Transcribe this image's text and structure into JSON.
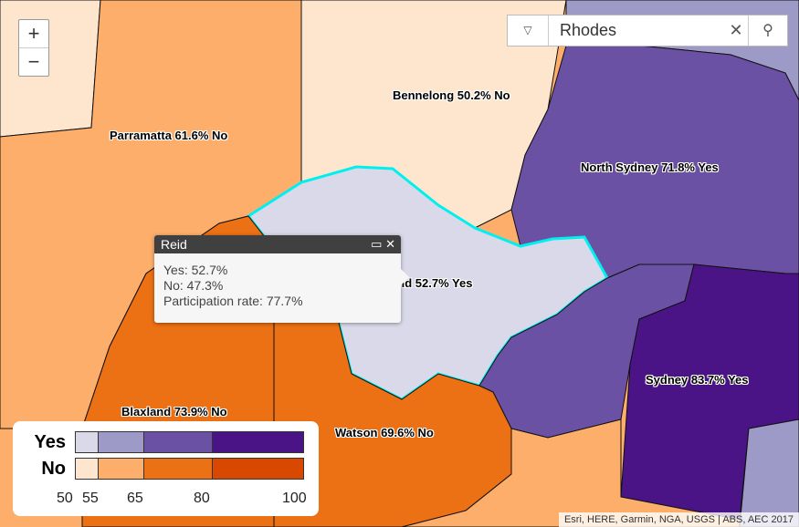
{
  "search": {
    "value": "Rhodes"
  },
  "zoom": {
    "in": "+",
    "out": "−"
  },
  "regions": [
    {
      "name": "Bennelong",
      "label": "Bennelong 50.2% No"
    },
    {
      "name": "Parramatta",
      "label": "Parramatta 61.6% No"
    },
    {
      "name": "North Sydney",
      "label": "North Sydney 71.8% Yes"
    },
    {
      "name": "Reid",
      "label": "Reid 52.7% Yes"
    },
    {
      "name": "Sydney",
      "label": "Sydney 83.7% Yes"
    },
    {
      "name": "Blaxland",
      "label": "Blaxland 73.9% No"
    },
    {
      "name": "Watson",
      "label": "Watson 69.6% No"
    }
  ],
  "popup": {
    "title": "Reid",
    "lines": [
      "Yes: 52.7%",
      "No: 47.3%",
      "Participation rate: 77.7%"
    ]
  },
  "legend": {
    "yes": "Yes",
    "no": "No",
    "ticks": [
      "50",
      "55",
      "65",
      "80",
      "100"
    ],
    "yes_colors": [
      "#d9d9ea",
      "#9e9ac8",
      "#6a51a3",
      "#4a1486"
    ],
    "no_colors": [
      "#fee6ce",
      "#fdae6b",
      "#ec7014",
      "#d94801"
    ]
  },
  "attribution": "Esri, HERE, Garmin, NGA, USGS | ABS, AEC 2017"
}
